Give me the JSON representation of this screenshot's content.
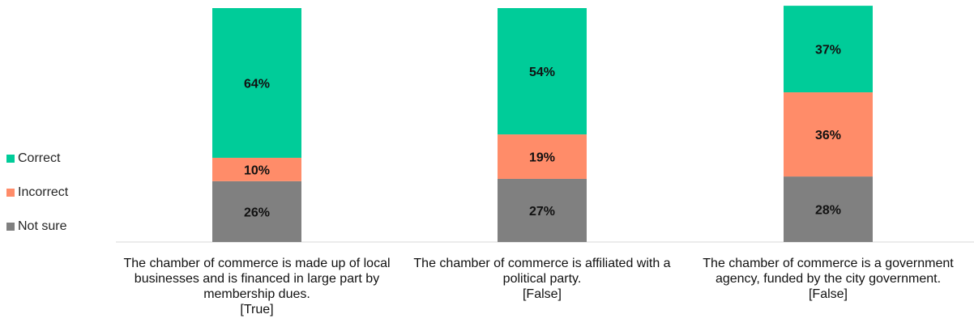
{
  "chart_data": {
    "type": "bar",
    "stacked": true,
    "categories": [
      {
        "text": "The chamber of commerce is made up of local businesses and is financed in large part by membership dues.",
        "note": "[True]"
      },
      {
        "text": "The chamber of commerce is affiliated with a political party.",
        "note": "[False]"
      },
      {
        "text": "The chamber of commerce is a government agency, funded by the city government.",
        "note": "[False]"
      }
    ],
    "series": [
      {
        "name": "Not sure",
        "color": "#808080",
        "values": [
          26,
          27,
          28
        ],
        "labels": [
          "26%",
          "27%",
          "28%"
        ]
      },
      {
        "name": "Incorrect",
        "color": "#FF8C69",
        "values": [
          10,
          19,
          36
        ],
        "labels": [
          "10%",
          "19%",
          "36%"
        ]
      },
      {
        "name": "Correct",
        "color": "#00CC99",
        "values": [
          64,
          54,
          37
        ],
        "labels": [
          "64%",
          "54%",
          "37%"
        ]
      }
    ],
    "legend_order": [
      "Correct",
      "Incorrect",
      "Not sure"
    ],
    "ylim": [
      0,
      100
    ],
    "grid": false,
    "legend_position": "left"
  }
}
